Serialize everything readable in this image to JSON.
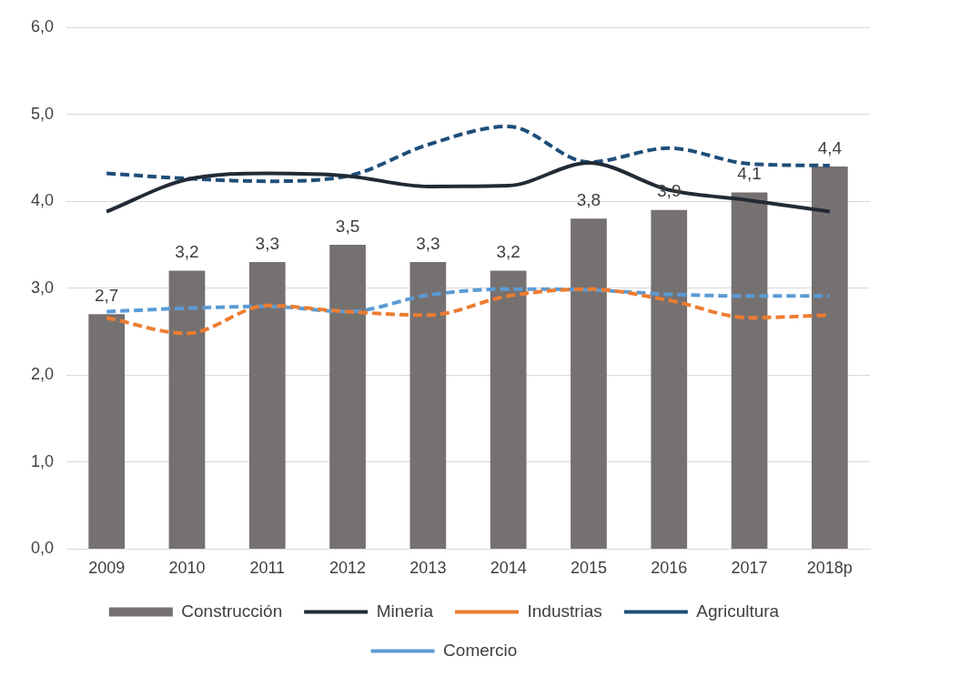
{
  "chart_data": {
    "type": "bar",
    "categories": [
      "2009",
      "2010",
      "2011",
      "2012",
      "2013",
      "2014",
      "2015",
      "2016",
      "2017",
      "2018p"
    ],
    "ylim": [
      0,
      6
    ],
    "yticks": [
      {
        "value": 0,
        "label": "0,0"
      },
      {
        "value": 1,
        "label": "1,0"
      },
      {
        "value": 2,
        "label": "2,0"
      },
      {
        "value": 3,
        "label": "3,0"
      },
      {
        "value": 4,
        "label": "4,0"
      },
      {
        "value": 5,
        "label": "5,0"
      },
      {
        "value": 6,
        "label": "6,0"
      }
    ],
    "grid": "y",
    "legend": "bottom",
    "series": [
      {
        "name": "Construcción",
        "color": "#767171",
        "values": [
          2.7,
          3.2,
          3.3,
          3.5,
          3.3,
          3.2,
          3.8,
          3.9,
          4.1,
          4.4
        ],
        "value_labels": [
          "2,7",
          "3,2",
          "3,3",
          "3,5",
          "3,3",
          "3,2",
          "3,8",
          "3,9",
          "4,1",
          "4,4"
        ]
      },
      {
        "name": "Mineria",
        "type": "line",
        "color": "#222a35",
        "line_style": "solid",
        "values": [
          3.88,
          4.25,
          4.32,
          4.29,
          4.17,
          4.18,
          4.44,
          4.13,
          4.01,
          3.88
        ]
      },
      {
        "name": "Industrias",
        "type": "line",
        "color": "#ed7d31",
        "line_style": "dashed",
        "values": [
          2.66,
          2.48,
          2.8,
          2.73,
          2.69,
          2.91,
          2.99,
          2.86,
          2.66,
          2.69
        ]
      },
      {
        "name": "Agricultura",
        "type": "line",
        "color": "#1f4e79",
        "line_style": "dashed",
        "values": [
          4.32,
          4.26,
          4.23,
          4.29,
          4.65,
          4.86,
          4.45,
          4.61,
          4.43,
          4.41
        ]
      },
      {
        "name": "Comercio",
        "type": "line",
        "color": "#5b9bd5",
        "line_style": "dashed",
        "values": [
          2.73,
          2.77,
          2.79,
          2.73,
          2.92,
          2.99,
          2.98,
          2.93,
          2.91,
          2.91
        ]
      }
    ]
  }
}
